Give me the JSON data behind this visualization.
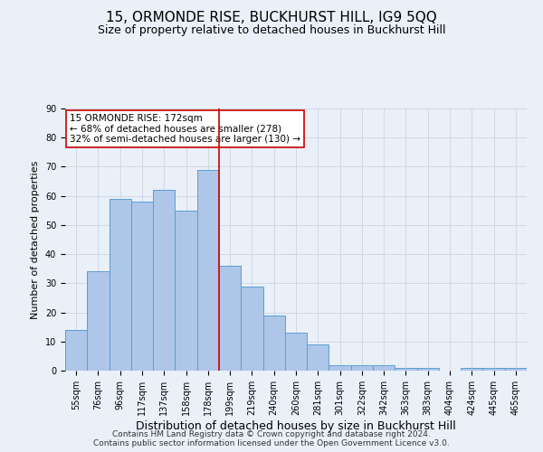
{
  "title": "15, ORMONDE RISE, BUCKHURST HILL, IG9 5QQ",
  "subtitle": "Size of property relative to detached houses in Buckhurst Hill",
  "xlabel": "Distribution of detached houses by size in Buckhurst Hill",
  "ylabel": "Number of detached properties",
  "categories": [
    "55sqm",
    "76sqm",
    "96sqm",
    "117sqm",
    "137sqm",
    "158sqm",
    "178sqm",
    "199sqm",
    "219sqm",
    "240sqm",
    "260sqm",
    "281sqm",
    "301sqm",
    "322sqm",
    "342sqm",
    "363sqm",
    "383sqm",
    "404sqm",
    "424sqm",
    "445sqm",
    "465sqm"
  ],
  "values": [
    14,
    34,
    59,
    58,
    62,
    55,
    69,
    36,
    29,
    19,
    13,
    9,
    2,
    2,
    2,
    1,
    1,
    0,
    1,
    1,
    1
  ],
  "bar_color": "#aec6e8",
  "bar_edge_color": "#5a9fd4",
  "vline_color": "#cc0000",
  "vline_pos": 6.5,
  "annotation_text": "15 ORMONDE RISE: 172sqm\n← 68% of detached houses are smaller (278)\n32% of semi-detached houses are larger (130) →",
  "annotation_box_color": "#ffffff",
  "annotation_box_edge": "#cc0000",
  "ylim": [
    0,
    90
  ],
  "yticks": [
    0,
    10,
    20,
    30,
    40,
    50,
    60,
    70,
    80,
    90
  ],
  "grid_color": "#d0d8e8",
  "background_color": "#eaf0f8",
  "footer_text": "Contains HM Land Registry data © Crown copyright and database right 2024.\nContains public sector information licensed under the Open Government Licence v3.0.",
  "title_fontsize": 11,
  "subtitle_fontsize": 9,
  "xlabel_fontsize": 9,
  "ylabel_fontsize": 8,
  "tick_fontsize": 7,
  "footer_fontsize": 6.5,
  "annot_fontsize": 7.5
}
